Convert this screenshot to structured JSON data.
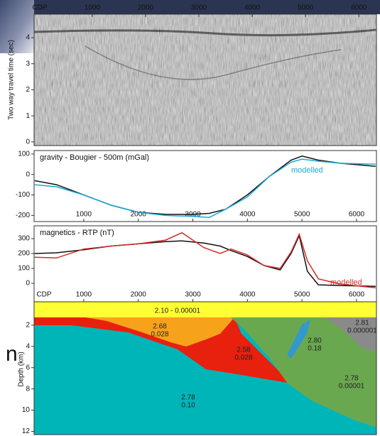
{
  "background_text": "n",
  "chart_data": [
    {
      "type": "seismic",
      "ylabel": "Two way travel time (sec)",
      "xlabel": "CDP",
      "xlim": [
        -90,
        6330
      ],
      "xticks": [
        1000,
        2000,
        3000,
        4000,
        5000,
        6000
      ],
      "ylim": [
        -0.14,
        4.9
      ],
      "yticks": [
        0,
        1,
        2,
        3,
        4
      ]
    },
    {
      "type": "line",
      "title": "gravity - Bougier - 500m (mGal)",
      "xlim": [
        90,
        6365
      ],
      "xticks": [
        1000,
        2000,
        3000,
        4000,
        5000,
        6000
      ],
      "ylim": [
        -230,
        117
      ],
      "yticks": [
        100,
        0,
        -100,
        -200
      ],
      "x": [
        100,
        500,
        1000,
        1500,
        2000,
        2500,
        3000,
        3300,
        3600,
        4000,
        4400,
        4800,
        5000,
        5300,
        5700,
        6350
      ],
      "series": [
        {
          "color": "#111111",
          "values": [
            -30,
            -50,
            -100,
            -150,
            -185,
            -195,
            -195,
            -190,
            -170,
            -100,
            -10,
            70,
            90,
            70,
            55,
            40
          ]
        },
        {
          "name": "modelled",
          "color": "#1aa9d6",
          "values": [
            -50,
            -60,
            -100,
            -150,
            -185,
            -200,
            -205,
            -210,
            -170,
            -110,
            -10,
            60,
            75,
            65,
            55,
            50
          ]
        }
      ]
    },
    {
      "type": "line",
      "title": "magnetics - RTP (nT)",
      "xlabel": "CDP",
      "xlim": [
        90,
        6365
      ],
      "xticks": [
        1000,
        2000,
        3000,
        4000,
        5000,
        6000
      ],
      "ylim": [
        -124,
        386
      ],
      "yticks": [
        300,
        200,
        100,
        0
      ],
      "x": [
        100,
        500,
        1000,
        1500,
        2000,
        2500,
        2800,
        3200,
        3500,
        3700,
        4000,
        4300,
        4600,
        4800,
        4950,
        5100,
        5300,
        5700,
        6350
      ],
      "series": [
        {
          "color": "#111111",
          "values": [
            200,
            205,
            225,
            250,
            265,
            280,
            285,
            270,
            250,
            220,
            180,
            120,
            90,
            200,
            320,
            80,
            -10,
            -15,
            -20
          ]
        },
        {
          "name": "modelled",
          "color": "#d42a2a",
          "values": [
            175,
            170,
            230,
            250,
            265,
            290,
            340,
            240,
            200,
            230,
            190,
            120,
            100,
            210,
            330,
            150,
            30,
            -5,
            -30
          ]
        }
      ]
    },
    {
      "type": "section",
      "ylabel": "Depth (km)",
      "ylim": [
        0,
        12.3
      ],
      "yticks": [
        2,
        4,
        6,
        8,
        10,
        12
      ],
      "units": [
        {
          "label": "2.10 - 0.00001"
        },
        {
          "density": "2.68",
          "susceptibility": "0.028"
        },
        {
          "density": "2.58",
          "susceptibility": "0.028"
        },
        {
          "density": "2.80",
          "susceptibility": "0.18"
        },
        {
          "density": "2.81",
          "susceptibility": "0.000001"
        },
        {
          "density": "2.78",
          "susceptibility": "0.00001"
        },
        {
          "density": "2.78",
          "susceptibility": "0.10"
        }
      ]
    }
  ]
}
